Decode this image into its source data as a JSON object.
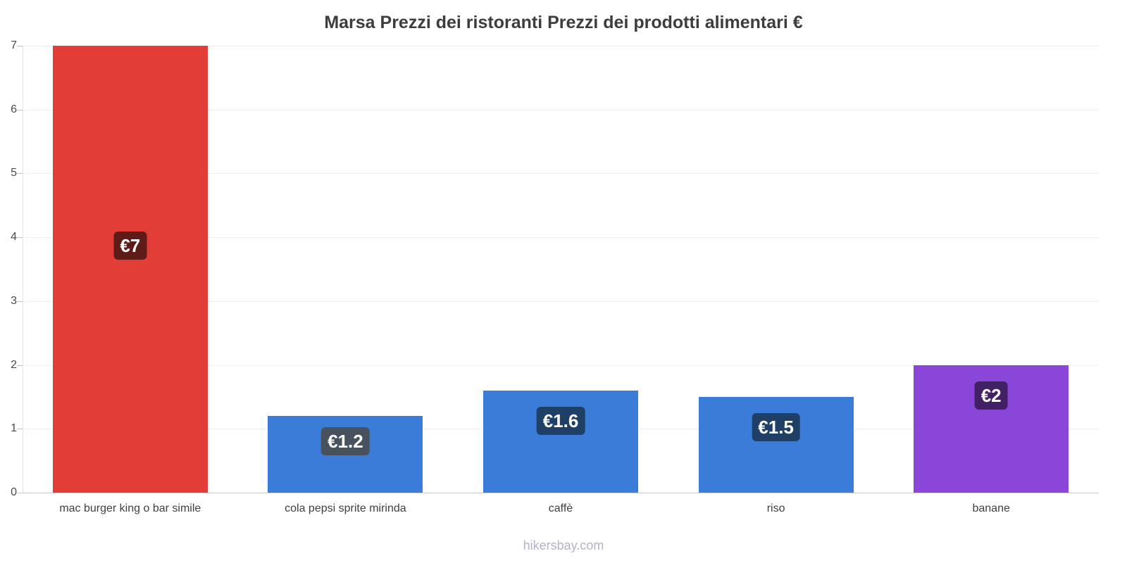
{
  "chart_data": {
    "type": "bar",
    "title": "Marsa Prezzi dei ristoranti Prezzi dei prodotti alimentari €",
    "categories": [
      "mac burger king o bar simile",
      "cola pepsi sprite mirinda",
      "caffè",
      "riso",
      "banane"
    ],
    "values": [
      7,
      1.2,
      1.6,
      1.5,
      2
    ],
    "value_labels": [
      "€7",
      "€1.2",
      "€1.6",
      "€1.5",
      "€2"
    ],
    "bar_colors": [
      "#e23d37",
      "#3b7cd9",
      "#3b7cd9",
      "#3b7cd9",
      "#8a45d9"
    ],
    "label_bg_colors": [
      "#5e1b18",
      "#47525e",
      "#1f4066",
      "#1f4066",
      "#412063"
    ],
    "ylim": [
      0,
      7
    ],
    "yticks": [
      0,
      1,
      2,
      3,
      4,
      5,
      6,
      7
    ],
    "grid": true,
    "legend": "none",
    "footer": "hikersbay.com"
  }
}
